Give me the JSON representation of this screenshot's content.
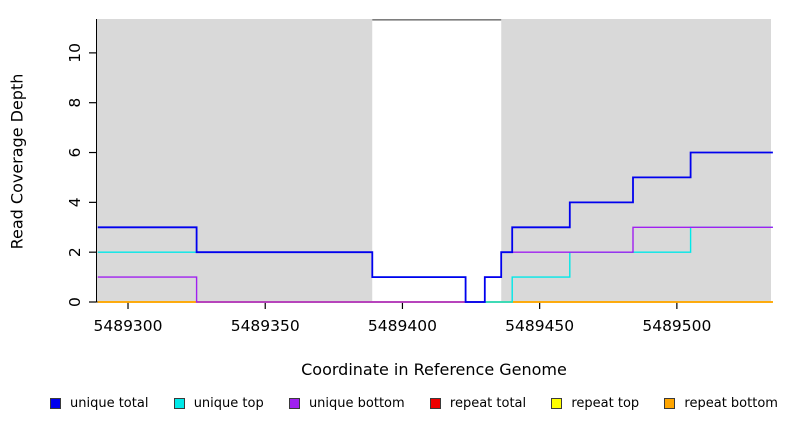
{
  "chart_data": {
    "type": "line",
    "subtype": "step-coverage",
    "title": "",
    "xlabel": "Coordinate in Reference Genome",
    "ylabel": "Read Coverage Depth",
    "xlim": [
      5489288.7,
      5489534.3
    ],
    "ylim": [
      0,
      11.36
    ],
    "x_ticks": [
      5489300,
      5489350,
      5489400,
      5489450,
      5489500
    ],
    "y_ticks": [
      0,
      2,
      4,
      6,
      8,
      10
    ],
    "grid": false,
    "legend_position": "bottom",
    "axis_color": "#000000",
    "background_regions": [
      {
        "name": "unique-region-left",
        "x0": 5489288.7,
        "x1": 5489389,
        "color": "#d9d9d9"
      },
      {
        "name": "unique-region-right",
        "x0": 5489436,
        "x1": 5489534.3,
        "color": "#d9d9d9"
      }
    ],
    "gap_marker": {
      "x0": 5489389,
      "x1": 5489436,
      "y": 11.3,
      "color": "#7e7e7e",
      "width": 1.6
    },
    "draw_order": [
      "repeat total",
      "repeat top",
      "repeat bottom",
      "unique top",
      "unique bottom",
      "unique total"
    ],
    "series": [
      {
        "name": "unique total",
        "color": "#0000ee",
        "line_width": 1.8,
        "points": [
          [
            5489289,
            3
          ],
          [
            5489325,
            3
          ],
          [
            5489325,
            2
          ],
          [
            5489389,
            2
          ],
          [
            5489389,
            1
          ],
          [
            5489423,
            1
          ],
          [
            5489423,
            0
          ],
          [
            5489430,
            0
          ],
          [
            5489430,
            1
          ],
          [
            5489436,
            1
          ],
          [
            5489436,
            2
          ],
          [
            5489440,
            2
          ],
          [
            5489440,
            3
          ],
          [
            5489461,
            3
          ],
          [
            5489461,
            4
          ],
          [
            5489484,
            4
          ],
          [
            5489484,
            5
          ],
          [
            5489505,
            5
          ],
          [
            5489505,
            6
          ],
          [
            5489535,
            6
          ]
        ]
      },
      {
        "name": "unique top",
        "color": "#00e8e8",
        "line_width": 1.4,
        "points": [
          [
            5489289,
            2
          ],
          [
            5489389,
            2
          ],
          [
            5489389,
            1
          ],
          [
            5489423,
            1
          ],
          [
            5489423,
            0
          ],
          [
            5489440,
            0
          ],
          [
            5489440,
            1
          ],
          [
            5489461,
            1
          ],
          [
            5489461,
            2
          ],
          [
            5489505,
            2
          ],
          [
            5489505,
            3
          ],
          [
            5489535,
            3
          ]
        ]
      },
      {
        "name": "unique bottom",
        "color": "#a020f0",
        "line_width": 1.4,
        "points": [
          [
            5489289,
            1
          ],
          [
            5489325,
            1
          ],
          [
            5489325,
            0
          ],
          [
            5489430,
            0
          ],
          [
            5489430,
            1
          ],
          [
            5489436,
            1
          ],
          [
            5489436,
            2
          ],
          [
            5489484,
            2
          ],
          [
            5489484,
            3
          ],
          [
            5489535,
            3
          ]
        ]
      },
      {
        "name": "repeat total",
        "color": "#ee0000",
        "line_width": 1.4,
        "points": [
          [
            5489289,
            0
          ],
          [
            5489535,
            0
          ]
        ]
      },
      {
        "name": "repeat top",
        "color": "#ffff00",
        "line_width": 1.4,
        "points": [
          [
            5489289,
            0
          ],
          [
            5489535,
            0
          ]
        ]
      },
      {
        "name": "repeat bottom",
        "color": "#ffa500",
        "line_width": 1.4,
        "points": [
          [
            5489289,
            0
          ],
          [
            5489535,
            0
          ]
        ]
      }
    ]
  }
}
